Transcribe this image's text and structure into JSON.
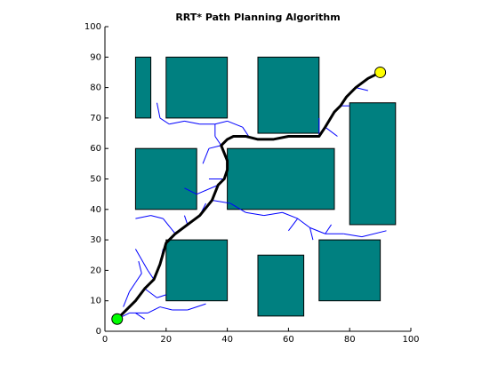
{
  "chart_data": {
    "type": "rrt",
    "title": "RRT* Path Planning Algorithm",
    "xlim": [
      0,
      100
    ],
    "ylim": [
      0,
      100
    ],
    "xticks": [
      0,
      20,
      40,
      60,
      80,
      100
    ],
    "yticks": [
      0,
      10,
      20,
      30,
      40,
      50,
      60,
      70,
      80,
      90,
      100
    ],
    "obstacle_color": "#008080",
    "tree_color": "#0000ff",
    "path_color": "#000000",
    "start_color": "#00ff00",
    "goal_color": "#ffff00",
    "obstacles": [
      {
        "x": [
          10,
          15
        ],
        "y": [
          70,
          90
        ]
      },
      {
        "x": [
          20,
          40
        ],
        "y": [
          70,
          90
        ]
      },
      {
        "x": [
          50,
          70
        ],
        "y": [
          65,
          90
        ]
      },
      {
        "x": [
          80,
          95
        ],
        "y": [
          35,
          75
        ]
      },
      {
        "x": [
          10,
          30
        ],
        "y": [
          40,
          60
        ]
      },
      {
        "x": [
          40,
          75
        ],
        "y": [
          40,
          60
        ]
      },
      {
        "x": [
          20,
          40
        ],
        "y": [
          10,
          30
        ]
      },
      {
        "x": [
          50,
          65
        ],
        "y": [
          5,
          25
        ]
      },
      {
        "x": [
          70,
          90
        ],
        "y": [
          10,
          30
        ]
      }
    ],
    "tree": [
      {
        "x": [
          4,
          8
        ],
        "y": [
          4,
          6
        ]
      },
      {
        "x": [
          8,
          14
        ],
        "y": [
          6,
          6
        ]
      },
      {
        "x": [
          14,
          18
        ],
        "y": [
          6,
          8
        ]
      },
      {
        "x": [
          18,
          22
        ],
        "y": [
          8,
          7
        ]
      },
      {
        "x": [
          22,
          27
        ],
        "y": [
          7,
          7
        ]
      },
      {
        "x": [
          27,
          33
        ],
        "y": [
          7,
          9
        ]
      },
      {
        "x": [
          10,
          13
        ],
        "y": [
          6,
          4
        ]
      },
      {
        "x": [
          6,
          8
        ],
        "y": [
          8,
          13
        ]
      },
      {
        "x": [
          8,
          10
        ],
        "y": [
          13,
          16
        ]
      },
      {
        "x": [
          10,
          12
        ],
        "y": [
          16,
          19
        ]
      },
      {
        "x": [
          12,
          11
        ],
        "y": [
          19,
          23
        ]
      },
      {
        "x": [
          13,
          17
        ],
        "y": [
          14,
          11
        ]
      },
      {
        "x": [
          17,
          20
        ],
        "y": [
          11,
          12
        ]
      },
      {
        "x": [
          16,
          14
        ],
        "y": [
          17,
          20
        ]
      },
      {
        "x": [
          14,
          10
        ],
        "y": [
          20,
          27
        ]
      },
      {
        "x": [
          18,
          19
        ],
        "y": [
          22,
          27
        ]
      },
      {
        "x": [
          23,
          19
        ],
        "y": [
          32,
          37
        ]
      },
      {
        "x": [
          19,
          15
        ],
        "y": [
          37,
          38
        ]
      },
      {
        "x": [
          15,
          10
        ],
        "y": [
          38,
          37
        ]
      },
      {
        "x": [
          27,
          26
        ],
        "y": [
          35,
          38
        ]
      },
      {
        "x": [
          31,
          33
        ],
        "y": [
          38,
          42
        ]
      },
      {
        "x": [
          35,
          41
        ],
        "y": [
          43,
          42
        ]
      },
      {
        "x": [
          41,
          46
        ],
        "y": [
          42,
          39
        ]
      },
      {
        "x": [
          46,
          52
        ],
        "y": [
          39,
          38
        ]
      },
      {
        "x": [
          52,
          58
        ],
        "y": [
          38,
          39
        ]
      },
      {
        "x": [
          58,
          63
        ],
        "y": [
          39,
          37
        ]
      },
      {
        "x": [
          63,
          67
        ],
        "y": [
          37,
          34
        ]
      },
      {
        "x": [
          67,
          72
        ],
        "y": [
          34,
          32
        ]
      },
      {
        "x": [
          72,
          78
        ],
        "y": [
          32,
          32
        ]
      },
      {
        "x": [
          78,
          84
        ],
        "y": [
          32,
          31
        ]
      },
      {
        "x": [
          84,
          92
        ],
        "y": [
          31,
          33
        ]
      },
      {
        "x": [
          63,
          60
        ],
        "y": [
          37,
          33
        ]
      },
      {
        "x": [
          67,
          68
        ],
        "y": [
          34,
          30
        ]
      },
      {
        "x": [
          72,
          74
        ],
        "y": [
          32,
          35
        ]
      },
      {
        "x": [
          38,
          36
        ],
        "y": [
          61,
          64
        ]
      },
      {
        "x": [
          36,
          36
        ],
        "y": [
          64,
          68
        ]
      },
      {
        "x": [
          36,
          31
        ],
        "y": [
          68,
          68
        ]
      },
      {
        "x": [
          31,
          26
        ],
        "y": [
          68,
          69
        ]
      },
      {
        "x": [
          26,
          21
        ],
        "y": [
          69,
          68
        ]
      },
      {
        "x": [
          21,
          18
        ],
        "y": [
          68,
          70
        ]
      },
      {
        "x": [
          18,
          17
        ],
        "y": [
          70,
          75
        ]
      },
      {
        "x": [
          36,
          40
        ],
        "y": [
          68,
          69
        ]
      },
      {
        "x": [
          40,
          45
        ],
        "y": [
          69,
          67
        ]
      },
      {
        "x": [
          45,
          47
        ],
        "y": [
          67,
          64
        ]
      },
      {
        "x": [
          38,
          34
        ],
        "y": [
          61,
          60
        ]
      },
      {
        "x": [
          34,
          32
        ],
        "y": [
          60,
          55
        ]
      },
      {
        "x": [
          39,
          34
        ],
        "y": [
          50,
          50
        ]
      },
      {
        "x": [
          37,
          30
        ],
        "y": [
          48,
          45
        ]
      },
      {
        "x": [
          30,
          26
        ],
        "y": [
          45,
          47
        ]
      },
      {
        "x": [
          70,
          70
        ],
        "y": [
          64,
          70
        ]
      },
      {
        "x": [
          72,
          76
        ],
        "y": [
          67,
          64
        ]
      },
      {
        "x": [
          77,
          80
        ],
        "y": [
          74,
          74
        ]
      },
      {
        "x": [
          82,
          86
        ],
        "y": [
          80,
          79
        ]
      }
    ],
    "path": {
      "x": [
        4,
        7,
        10,
        13,
        16,
        18,
        20,
        23,
        27,
        31,
        35,
        37,
        39,
        40,
        40,
        38,
        40,
        42,
        46,
        50,
        55,
        60,
        65,
        70,
        72,
        75,
        77,
        79,
        82,
        86,
        90
      ],
      "y": [
        4,
        7,
        10,
        14,
        17,
        22,
        29,
        32,
        35,
        38,
        43,
        48,
        50,
        53,
        56,
        61,
        63,
        64,
        64,
        63,
        63,
        64,
        64,
        64,
        67,
        72,
        74,
        77,
        80,
        83,
        85
      ]
    },
    "start": {
      "x": 4,
      "y": 4
    },
    "goal": {
      "x": 90,
      "y": 85
    }
  }
}
